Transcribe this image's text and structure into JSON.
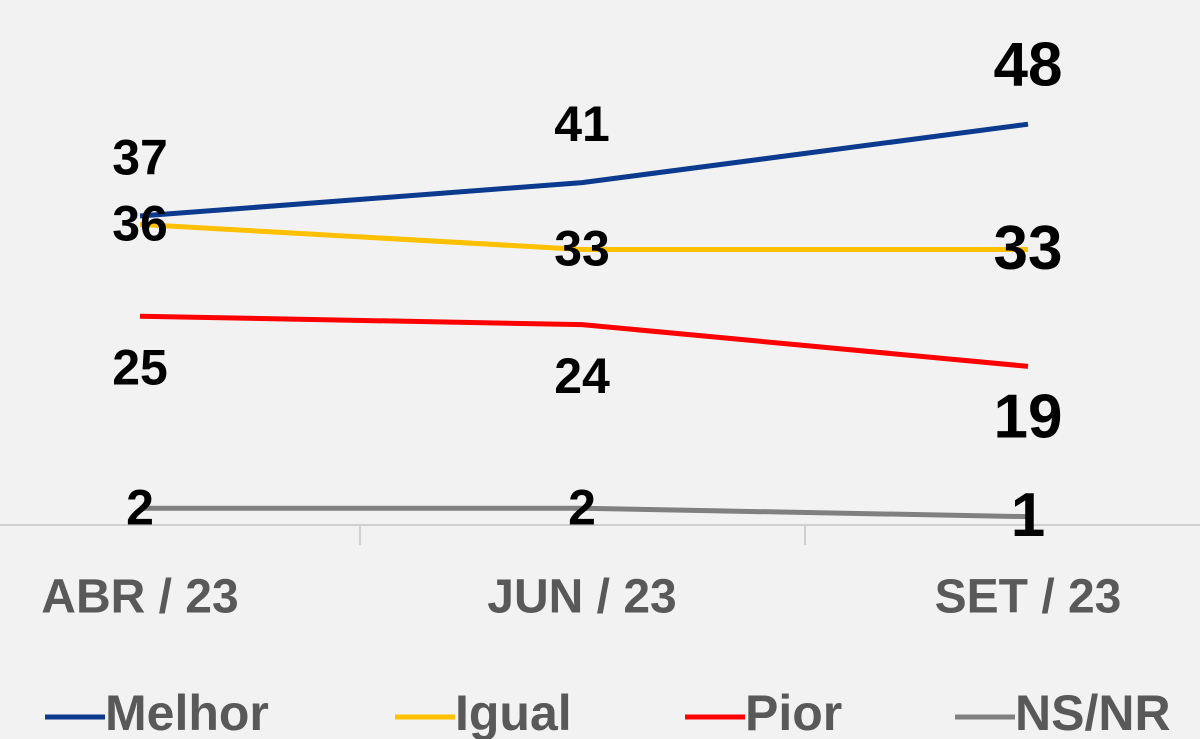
{
  "chart_data": {
    "type": "line",
    "categories": [
      "ABR / 23",
      "JUN / 23",
      "SET / 23"
    ],
    "series": [
      {
        "name": "Melhor",
        "color": "#0b3a8e",
        "values": [
          37,
          41,
          48
        ]
      },
      {
        "name": "Igual",
        "color": "#ffc000",
        "values": [
          36,
          33,
          33
        ]
      },
      {
        "name": "Pior",
        "color": "#ff0000",
        "values": [
          25,
          24,
          19
        ]
      },
      {
        "name": "NS/NR",
        "color": "#808080",
        "values": [
          2,
          2,
          1
        ]
      }
    ],
    "ylim": [
      0,
      60
    ],
    "legend": "bottom"
  }
}
